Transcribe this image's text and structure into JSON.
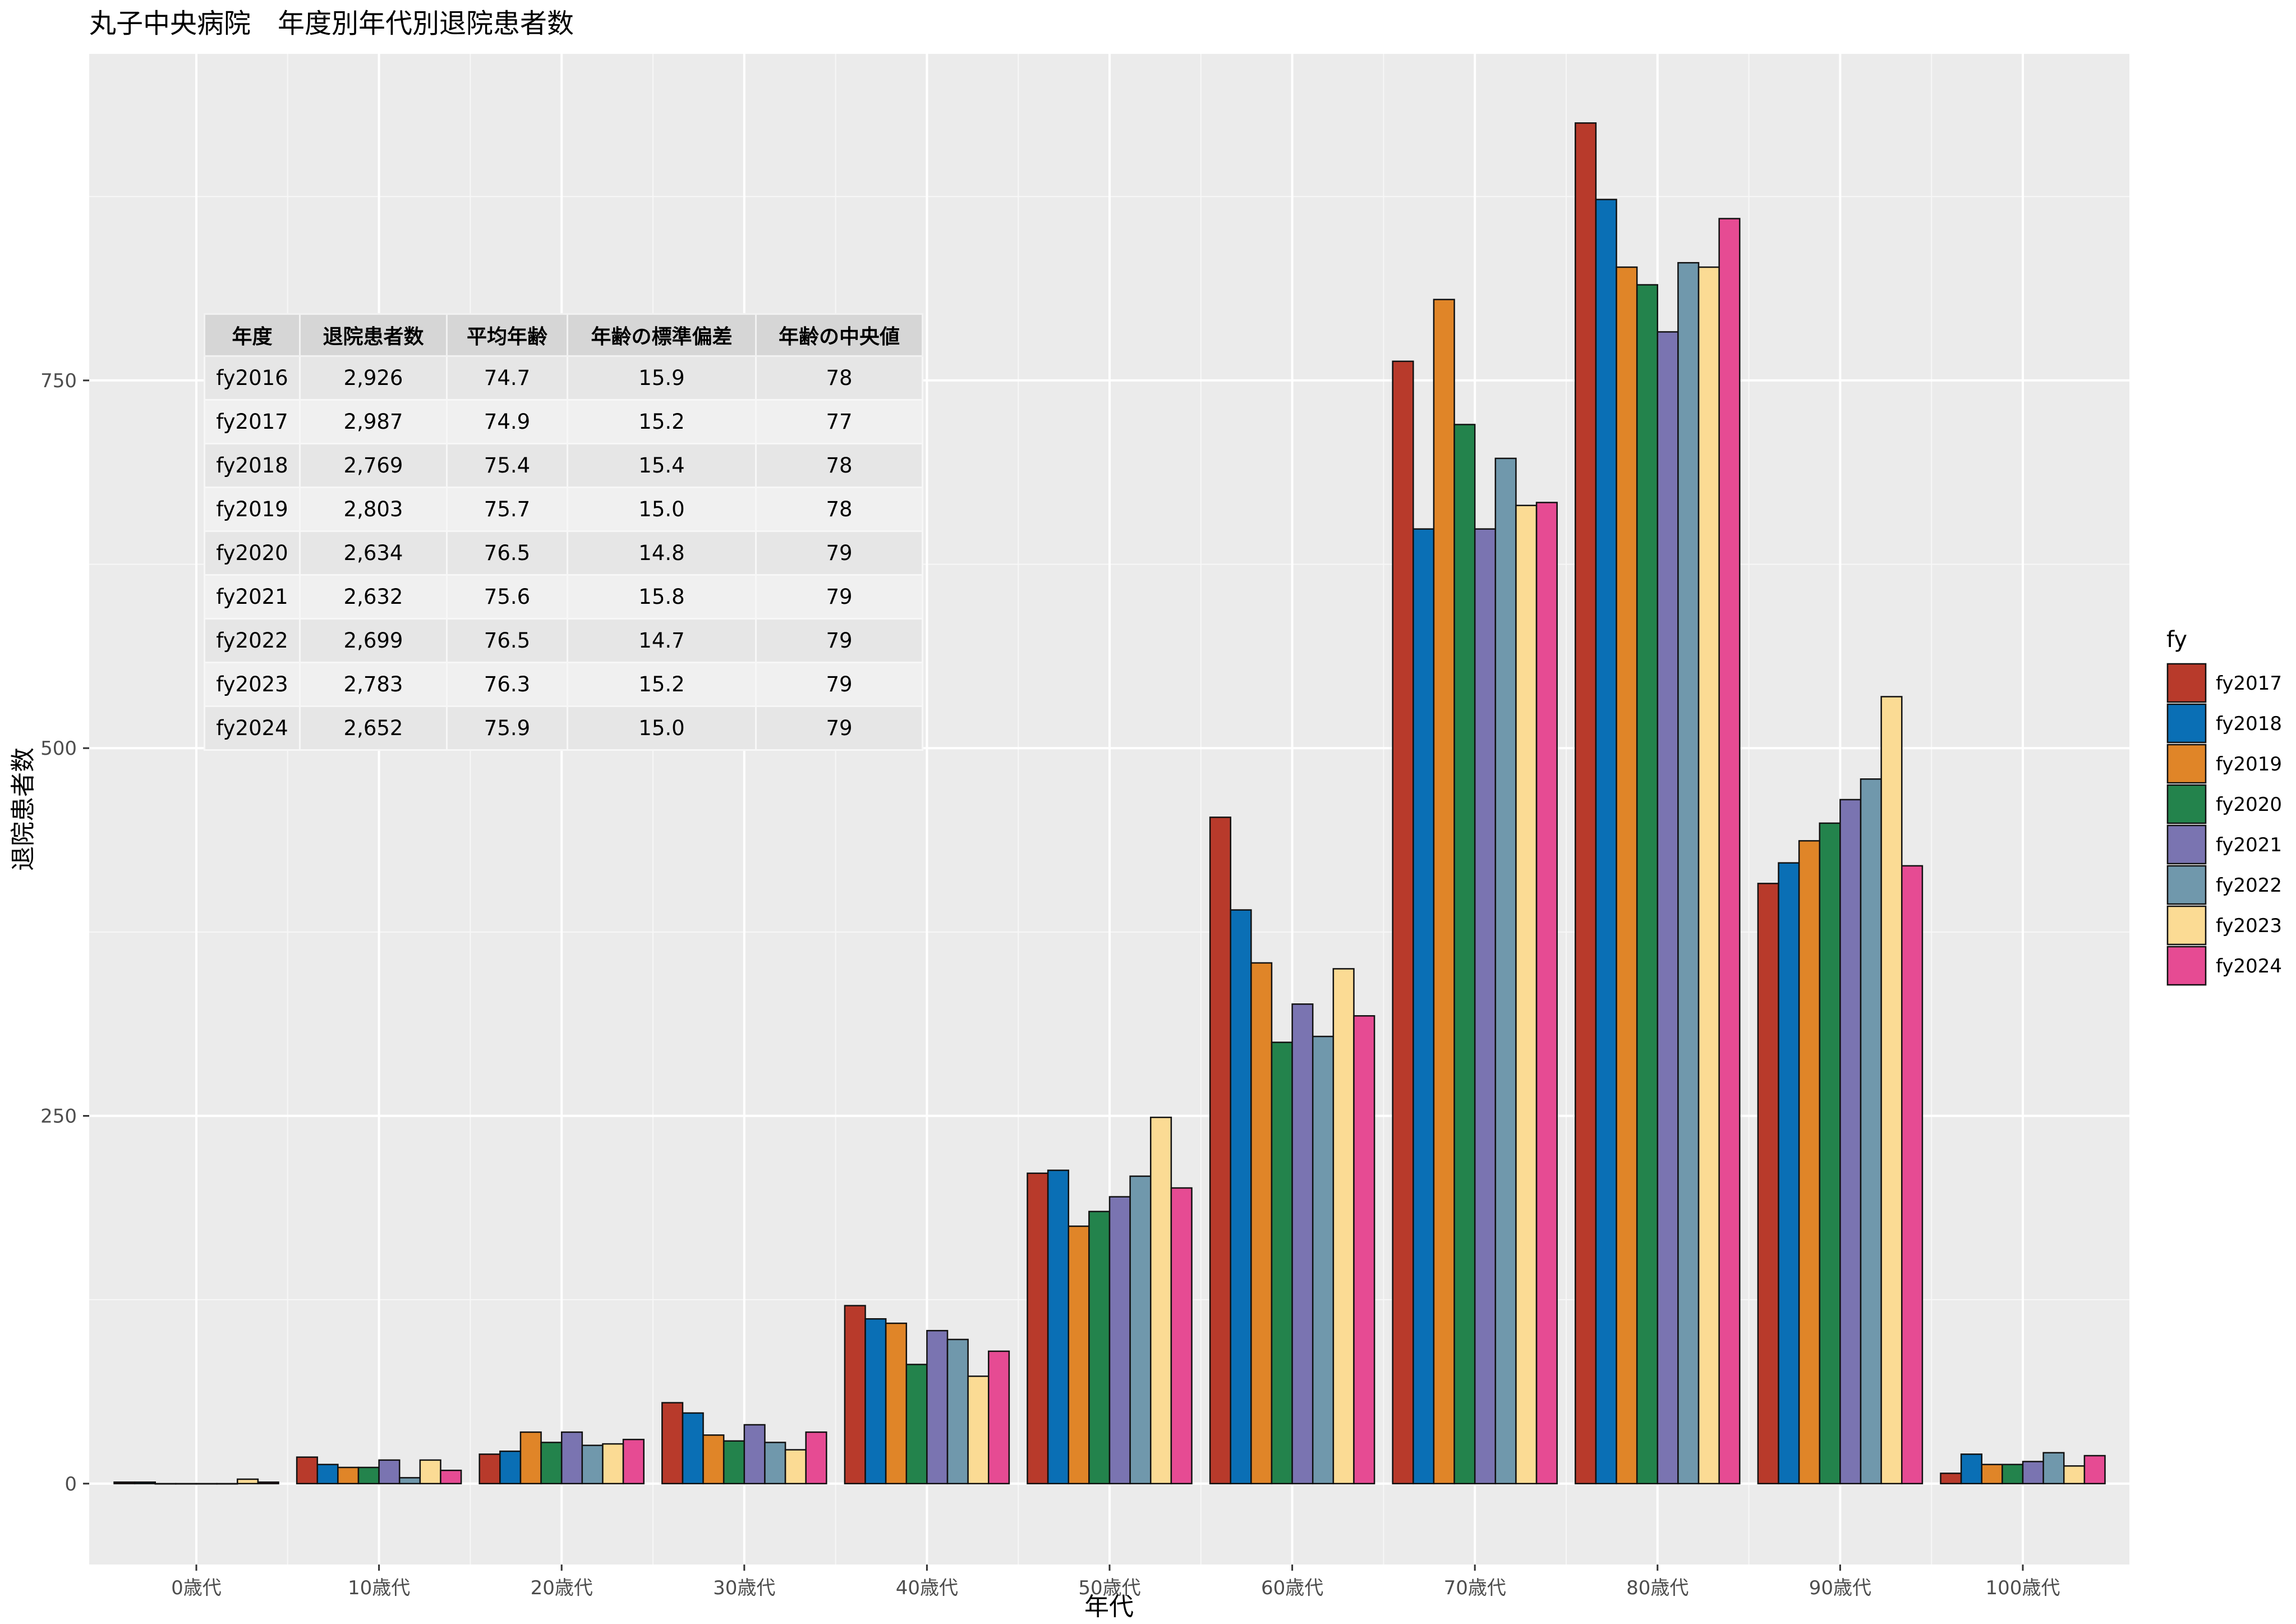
{
  "chart_data": {
    "type": "bar",
    "title": "丸子中央病院　年度別年代別退院患者数",
    "xlabel": "年代",
    "ylabel": "退院患者数",
    "ylim": [
      -55,
      972
    ],
    "yticks": [
      0,
      250,
      500,
      750
    ],
    "grid": true,
    "legend_title": "fy",
    "legend_position": "right",
    "categories": [
      "0歳代",
      "10歳代",
      "20歳代",
      "30歳代",
      "40歳代",
      "50歳代",
      "60歳代",
      "70歳代",
      "80歳代",
      "90歳代",
      "100歳代"
    ],
    "series": [
      {
        "name": "fy2017",
        "color": "#B83A2B",
        "values": [
          1,
          18,
          20,
          55,
          121,
          211,
          453,
          763,
          925,
          408,
          7
        ]
      },
      {
        "name": "fy2018",
        "color": "#0A6FB5",
        "values": [
          1,
          13,
          22,
          48,
          112,
          213,
          390,
          649,
          873,
          422,
          20
        ]
      },
      {
        "name": "fy2019",
        "color": "#E08528",
        "values": [
          0,
          11,
          35,
          33,
          109,
          175,
          354,
          805,
          827,
          437,
          13
        ]
      },
      {
        "name": "fy2020",
        "color": "#23834C",
        "values": [
          0,
          11,
          28,
          29,
          81,
          185,
          300,
          720,
          815,
          449,
          13
        ]
      },
      {
        "name": "fy2021",
        "color": "#7A74B1",
        "values": [
          0,
          16,
          35,
          40,
          104,
          195,
          326,
          649,
          783,
          465,
          15
        ]
      },
      {
        "name": "fy2022",
        "color": "#7098AC",
        "values": [
          0,
          4,
          26,
          28,
          98,
          209,
          304,
          697,
          830,
          479,
          21
        ]
      },
      {
        "name": "fy2023",
        "color": "#FBDB94",
        "values": [
          3,
          16,
          27,
          23,
          73,
          249,
          350,
          665,
          827,
          535,
          12
        ]
      },
      {
        "name": "fy2024",
        "color": "#E64B93",
        "values": [
          1,
          9,
          30,
          35,
          90,
          201,
          318,
          667,
          860,
          420,
          19
        ]
      }
    ]
  },
  "table": {
    "headers": [
      "年度",
      "退院患者数",
      "平均年齢",
      "年齢の標準偏差",
      "年齢の中央値"
    ],
    "rows": [
      [
        "fy2016",
        "2,926",
        "74.7",
        "15.9",
        "78"
      ],
      [
        "fy2017",
        "2,987",
        "74.9",
        "15.2",
        "77"
      ],
      [
        "fy2018",
        "2,769",
        "75.4",
        "15.4",
        "78"
      ],
      [
        "fy2019",
        "2,803",
        "75.7",
        "15.0",
        "78"
      ],
      [
        "fy2020",
        "2,634",
        "76.5",
        "14.8",
        "79"
      ],
      [
        "fy2021",
        "2,632",
        "75.6",
        "15.8",
        "79"
      ],
      [
        "fy2022",
        "2,699",
        "76.5",
        "14.7",
        "79"
      ],
      [
        "fy2023",
        "2,783",
        "76.3",
        "15.2",
        "79"
      ],
      [
        "fy2024",
        "2,652",
        "75.9",
        "15.0",
        "79"
      ]
    ]
  }
}
